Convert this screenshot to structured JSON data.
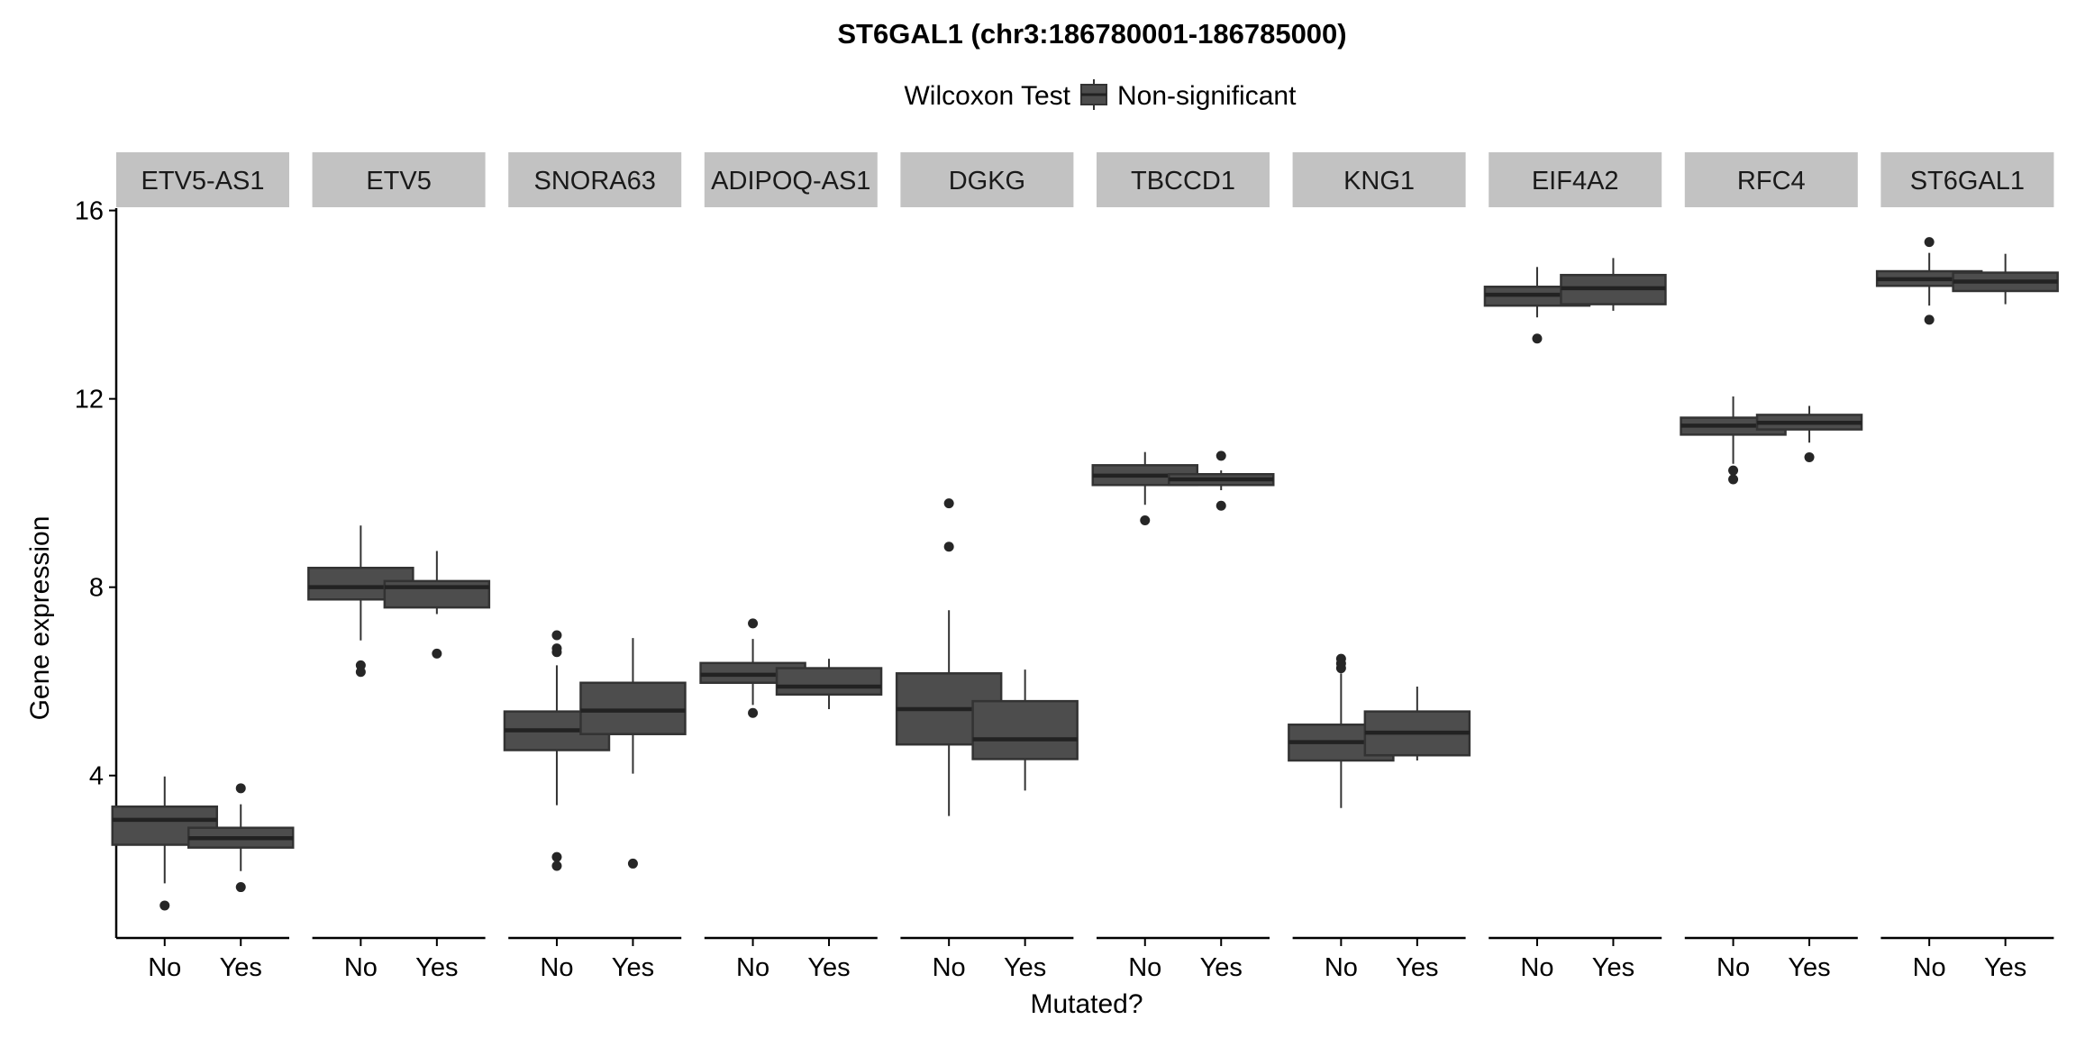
{
  "chart_data": {
    "type": "boxplot",
    "title": "ST6GAL1 (chr3:186780001-186785000)",
    "legend": {
      "title": "Wilcoxon Test",
      "entries": [
        "Non-significant"
      ],
      "placement": "top"
    },
    "xlabel": "Mutated?",
    "ylabel": "Gene expression",
    "ylim": [
      0.55,
      16.05
    ],
    "yticks": [
      4,
      8,
      12,
      16
    ],
    "groups": [
      "No",
      "Yes"
    ],
    "colors": {
      "box_fill": "#4d4d4d",
      "box_line": "#333333",
      "strip": "#c2c2c2"
    },
    "panels": [
      {
        "name": "ETV5-AS1",
        "boxes": [
          {
            "group": "No",
            "lower": 1.71,
            "q1": 2.53,
            "median": 3.06,
            "q3": 3.34,
            "upper": 3.98,
            "outliers": [
              1.24
            ]
          },
          {
            "group": "Yes",
            "lower": 1.97,
            "q1": 2.47,
            "median": 2.67,
            "q3": 2.89,
            "upper": 3.39,
            "outliers": [
              3.73,
              1.63
            ]
          }
        ]
      },
      {
        "name": "ETV5",
        "boxes": [
          {
            "group": "No",
            "lower": 6.87,
            "q1": 7.74,
            "median": 8.0,
            "q3": 8.41,
            "upper": 9.31,
            "outliers": [
              6.34,
              6.2
            ]
          },
          {
            "group": "Yes",
            "lower": 7.43,
            "q1": 7.57,
            "median": 8.0,
            "q3": 8.13,
            "upper": 8.77,
            "outliers": [
              6.59
            ]
          }
        ]
      },
      {
        "name": "SNORA63",
        "boxes": [
          {
            "group": "No",
            "lower": 3.37,
            "q1": 4.54,
            "median": 4.96,
            "q3": 5.36,
            "upper": 6.34,
            "outliers": [
              6.98,
              6.7,
              6.62,
              2.27,
              2.08
            ]
          },
          {
            "group": "Yes",
            "lower": 4.04,
            "q1": 4.88,
            "median": 5.38,
            "q3": 5.97,
            "upper": 6.92,
            "outliers": [
              2.13
            ]
          }
        ]
      },
      {
        "name": "ADIPOQ-AS1",
        "boxes": [
          {
            "group": "No",
            "lower": 5.5,
            "q1": 5.97,
            "median": 6.14,
            "q3": 6.39,
            "upper": 6.9,
            "outliers": [
              7.23,
              5.33
            ]
          },
          {
            "group": "Yes",
            "lower": 5.41,
            "q1": 5.72,
            "median": 5.89,
            "q3": 6.28,
            "upper": 6.48,
            "outliers": []
          }
        ]
      },
      {
        "name": "DGKG",
        "boxes": [
          {
            "group": "No",
            "lower": 3.14,
            "q1": 4.66,
            "median": 5.41,
            "q3": 6.17,
            "upper": 7.51,
            "outliers": [
              9.78,
              8.86
            ]
          },
          {
            "group": "Yes",
            "lower": 3.68,
            "q1": 4.35,
            "median": 4.77,
            "q3": 5.58,
            "upper": 6.25,
            "outliers": []
          }
        ]
      },
      {
        "name": "TBCCD1",
        "boxes": [
          {
            "group": "No",
            "lower": 9.75,
            "q1": 10.17,
            "median": 10.37,
            "q3": 10.59,
            "upper": 10.87,
            "outliers": [
              9.42
            ]
          },
          {
            "group": "Yes",
            "lower": 10.06,
            "q1": 10.17,
            "median": 10.29,
            "q3": 10.4,
            "upper": 10.48,
            "outliers": [
              10.79,
              9.73
            ]
          }
        ]
      },
      {
        "name": "KNG1",
        "boxes": [
          {
            "group": "No",
            "lower": 3.31,
            "q1": 4.32,
            "median": 4.71,
            "q3": 5.08,
            "upper": 6.17,
            "outliers": [
              6.48,
              6.28,
              6.38
            ]
          },
          {
            "group": "Yes",
            "lower": 4.32,
            "q1": 4.43,
            "median": 4.91,
            "q3": 5.36,
            "upper": 5.89,
            "outliers": []
          }
        ]
      },
      {
        "name": "EIF4A2",
        "boxes": [
          {
            "group": "No",
            "lower": 13.73,
            "q1": 13.98,
            "median": 14.21,
            "q3": 14.38,
            "upper": 14.8,
            "outliers": [
              13.28
            ]
          },
          {
            "group": "Yes",
            "lower": 13.87,
            "q1": 14.01,
            "median": 14.35,
            "q3": 14.63,
            "upper": 14.99,
            "outliers": []
          }
        ]
      },
      {
        "name": "RFC4",
        "boxes": [
          {
            "group": "No",
            "lower": 10.62,
            "q1": 11.24,
            "median": 11.43,
            "q3": 11.6,
            "upper": 12.05,
            "outliers": [
              10.48,
              10.29
            ]
          },
          {
            "group": "Yes",
            "lower": 11.07,
            "q1": 11.35,
            "median": 11.49,
            "q3": 11.66,
            "upper": 11.85,
            "outliers": [
              10.76
            ]
          }
        ]
      },
      {
        "name": "ST6GAL1",
        "boxes": [
          {
            "group": "No",
            "lower": 13.98,
            "q1": 14.4,
            "median": 14.54,
            "q3": 14.71,
            "upper": 15.1,
            "outliers": [
              15.33,
              13.68
            ]
          },
          {
            "group": "Yes",
            "lower": 14.01,
            "q1": 14.29,
            "median": 14.49,
            "q3": 14.68,
            "upper": 15.08,
            "outliers": []
          }
        ]
      }
    ]
  }
}
